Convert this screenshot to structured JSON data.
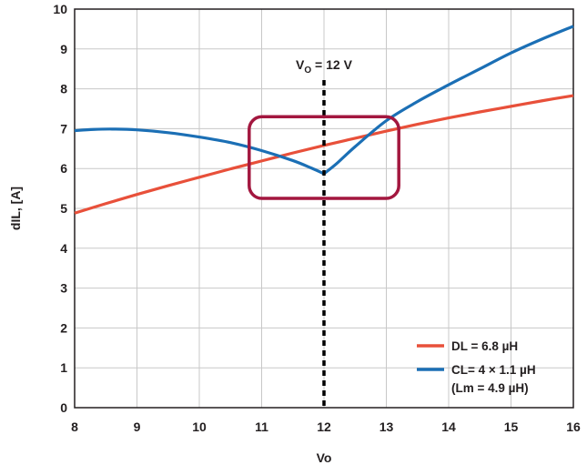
{
  "chart_data": {
    "type": "line",
    "xlabel": "Vo",
    "ylabel": "dIL, [A]",
    "xlim": [
      8,
      16
    ],
    "ylim": [
      0,
      10
    ],
    "xticks": [
      8,
      9,
      10,
      11,
      12,
      13,
      14,
      15,
      16
    ],
    "yticks": [
      0,
      1,
      2,
      3,
      4,
      5,
      6,
      7,
      8,
      9,
      10
    ],
    "xtick_labels": [
      "8",
      "9",
      "10",
      "11",
      "12",
      "13",
      "14",
      "15",
      "16"
    ],
    "ytick_labels": [
      "0",
      "1",
      "2",
      "3",
      "4",
      "5",
      "6",
      "7",
      "8",
      "9",
      "10"
    ],
    "grid": true,
    "legend_position": "bottom-right",
    "series": [
      {
        "name": "DL = 6.8 µH",
        "color": "#e8503a",
        "x": [
          8,
          8.5,
          9,
          9.5,
          10,
          10.5,
          11,
          11.5,
          12,
          12.5,
          13,
          13.5,
          14,
          14.5,
          15,
          15.5,
          16
        ],
        "y": [
          4.88,
          5.12,
          5.35,
          5.57,
          5.78,
          5.99,
          6.19,
          6.39,
          6.58,
          6.76,
          6.94,
          7.11,
          7.27,
          7.42,
          7.56,
          7.7,
          7.83
        ]
      },
      {
        "name": "CL= 4 × 1.1 µH",
        "name_line2": "(Lm = 4.9 µH)",
        "color": "#1b6fb5",
        "x": [
          8,
          8.3,
          8.6,
          9,
          9.5,
          10,
          10.5,
          11,
          11.5,
          11.8,
          12,
          12.2,
          12.5,
          13,
          13.5,
          14,
          14.5,
          15,
          15.5,
          16
        ],
        "y": [
          6.95,
          6.98,
          6.99,
          6.97,
          6.9,
          6.79,
          6.65,
          6.45,
          6.2,
          6.01,
          5.87,
          6.12,
          6.55,
          7.2,
          7.68,
          8.1,
          8.5,
          8.9,
          9.25,
          9.57
        ]
      }
    ],
    "annotations": {
      "vline_x": 12,
      "vline_label_main": "V",
      "vline_label_sub": "O",
      "vline_label_rest": " = 12 V",
      "highlight_box": {
        "x_range": [
          10.8,
          13.2
        ],
        "y_range": [
          5.25,
          7.3
        ],
        "color": "#a3173f"
      }
    }
  }
}
